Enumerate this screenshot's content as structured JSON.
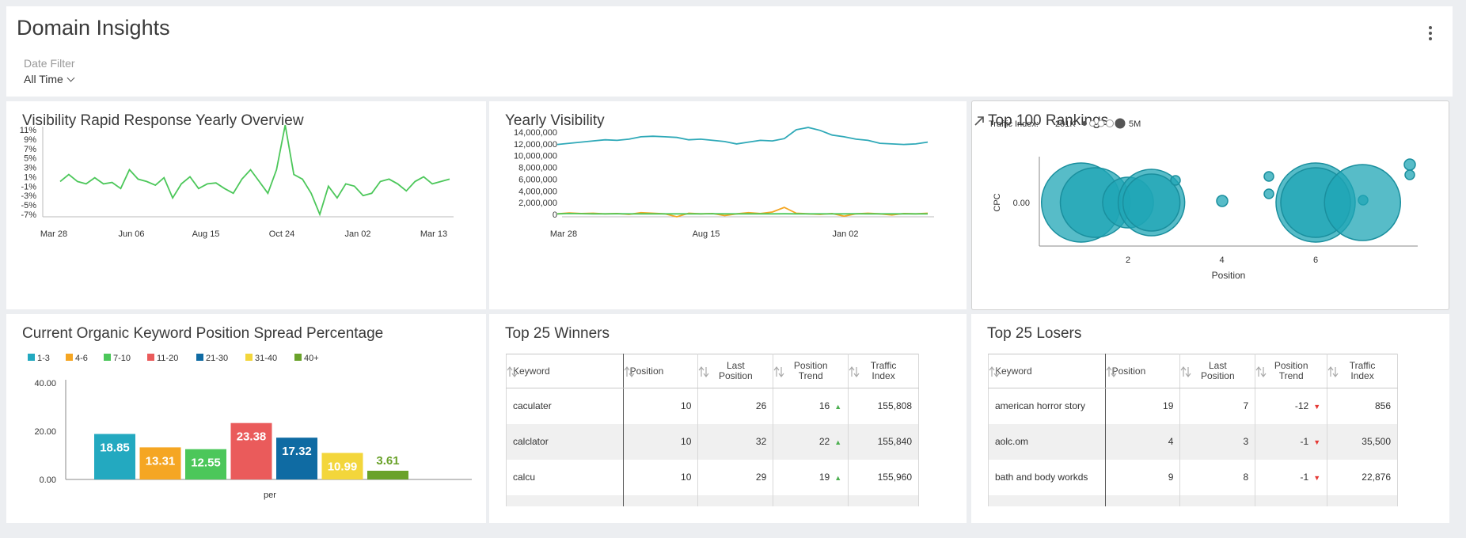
{
  "header": {
    "title": "Domain Insights",
    "date_filter_label": "Date Filter",
    "date_filter_value": "All Time"
  },
  "panels": {
    "rapid": {
      "title": "Visibility Rapid Response Yearly Overview"
    },
    "yearly": {
      "title": "Yearly Visibility"
    },
    "rankings": {
      "title": "Top 100 Rankings",
      "traffic_label": "Traffic Index:",
      "traffic_min": "201K",
      "traffic_max": "5M"
    },
    "spread": {
      "title": "Current Organic Keyword Position Spread Percentage"
    },
    "winners": {
      "title": "Top 25 Winners"
    },
    "losers": {
      "title": "Top 25 Losers"
    }
  },
  "chart_data": [
    {
      "type": "line",
      "id": "rapid",
      "title": "Visibility Rapid Response Yearly Overview",
      "y_ticks": [
        "11%",
        "9%",
        "7%",
        "5%",
        "3%",
        "1%",
        "-1%",
        "-3%",
        "-5%",
        "-7%"
      ],
      "x_ticks": [
        "Mar 28",
        "Jun 06",
        "Aug 15",
        "Oct 24",
        "Jan 02",
        "Mar 13"
      ],
      "ylim": [
        -7,
        11
      ],
      "color": "#4cc75a",
      "values": [
        0,
        1.5,
        0,
        -0.5,
        0.8,
        -0.5,
        -0.2,
        -1.5,
        2.5,
        0.5,
        0,
        -0.8,
        0.8,
        -3.5,
        -0.5,
        1,
        -1.5,
        -0.5,
        -0.3,
        -1.5,
        -2.5,
        0.5,
        2.5,
        0,
        -2.5,
        2.5,
        12,
        1.5,
        0.5,
        -2.5,
        -7,
        -1,
        -3.5,
        -0.5,
        -1,
        -3,
        -2.5,
        0,
        0.5,
        -0.5,
        -2,
        0,
        1,
        -0.5,
        0,
        0.5
      ]
    },
    {
      "type": "line",
      "id": "yearly",
      "title": "Yearly Visibility",
      "y_ticks": [
        "14,000,000",
        "12,000,000",
        "10,000,000",
        "8,000,000",
        "6,000,000",
        "4,000,000",
        "2,000,000",
        "0"
      ],
      "x_ticks": [
        "Mar 28",
        "Aug 15",
        "Jan 02"
      ],
      "ylim": [
        0,
        14000000
      ],
      "series": [
        {
          "color": "#2fa9b8",
          "values": [
            11900000,
            12100000,
            12300000,
            12500000,
            12700000,
            12600000,
            12800000,
            13200000,
            13300000,
            13200000,
            13100000,
            12700000,
            12800000,
            12600000,
            12400000,
            12000000,
            12300000,
            12600000,
            12500000,
            12900000,
            14400000,
            14800000,
            14300000,
            13500000,
            13200000,
            12800000,
            12600000,
            12100000,
            12000000,
            11900000,
            12000000,
            12300000
          ]
        },
        {
          "color": "#f5a623",
          "values": [
            100000,
            250000,
            150000,
            200000,
            100000,
            150000,
            0,
            300000,
            200000,
            100000,
            -400000,
            200000,
            100000,
            150000,
            -200000,
            100000,
            300000,
            150000,
            400000,
            1200000,
            200000,
            100000,
            0,
            150000,
            -300000,
            100000,
            200000,
            100000,
            -100000,
            150000,
            100000,
            200000
          ]
        },
        {
          "color": "#4cc75a",
          "values": [
            100000,
            150000,
            120000,
            100000,
            90000,
            110000,
            100000,
            90000,
            100000,
            95000,
            100000,
            100000,
            90000,
            110000,
            100000,
            100000,
            95000,
            100000,
            90000,
            110000,
            100000,
            100000,
            95000,
            100000,
            90000,
            110000,
            100000,
            100000,
            95000,
            100000,
            90000,
            100000
          ]
        }
      ]
    },
    {
      "type": "scatter",
      "id": "rankings",
      "title": "Top 100 Rankings",
      "xlabel": "Position",
      "ylabel": "CPC",
      "x_ticks": [
        "2",
        "4",
        "6"
      ],
      "y_ticks": [
        "0.00"
      ],
      "color": "#1fa5b5",
      "points": [
        {
          "x": 1,
          "r": 50
        },
        {
          "x": 1.3,
          "r": 44
        },
        {
          "x": 2,
          "r": 32
        },
        {
          "x": 2.5,
          "r": 42
        },
        {
          "x": 2.5,
          "r": 36
        },
        {
          "x": 2,
          "r": 7
        },
        {
          "x": 2,
          "r": 6
        },
        {
          "x": 2.5,
          "r": 6
        },
        {
          "x": 4,
          "r": 6
        },
        {
          "x": 5.5,
          "r": 7
        },
        {
          "x": 5.5,
          "r": 6
        },
        {
          "x": 6,
          "r": 50
        },
        {
          "x": 6,
          "r": 44
        },
        {
          "x": 7,
          "r": 48
        },
        {
          "x": 7.5,
          "r": 6
        }
      ]
    },
    {
      "type": "bar",
      "id": "spread",
      "title": "Current Organic Keyword Position Spread Percentage",
      "xlabel": "per",
      "y_ticks": [
        "40.00",
        "20.00",
        "0.00"
      ],
      "ylim": [
        0,
        40
      ],
      "categories": [
        "1-3",
        "4-6",
        "7-10",
        "11-20",
        "21-30",
        "31-40",
        "40+"
      ],
      "values": [
        18.85,
        13.31,
        12.55,
        23.38,
        17.32,
        10.99,
        3.61
      ],
      "labels": [
        "18.85",
        "13.31",
        "12.55",
        "23.38",
        "17.32",
        "10.99",
        "3.61"
      ],
      "colors": [
        "#23a9c0",
        "#f5a623",
        "#4cc75a",
        "#ea5b5b",
        "#0f6ba3",
        "#f3d63b",
        "#6aa22a"
      ]
    }
  ],
  "winners": {
    "headers": [
      "Keyword",
      "Position",
      "Last Position",
      "Position Trend",
      "Traffic Index"
    ],
    "rows": [
      {
        "keyword": "caculater",
        "position": "10",
        "last": "26",
        "trend": "16",
        "traffic": "155,808"
      },
      {
        "keyword": "calclator",
        "position": "10",
        "last": "32",
        "trend": "22",
        "traffic": "155,840"
      },
      {
        "keyword": "calcu",
        "position": "10",
        "last": "29",
        "trend": "19",
        "traffic": "155,960"
      }
    ]
  },
  "losers": {
    "headers": [
      "Keyword",
      "Position",
      "Last Position",
      "Position Trend",
      "Traffic Index"
    ],
    "rows": [
      {
        "keyword": "american horror story",
        "position": "19",
        "last": "7",
        "trend": "-12",
        "traffic": "856"
      },
      {
        "keyword": "aolc.om",
        "position": "4",
        "last": "3",
        "trend": "-1",
        "traffic": "35,500"
      },
      {
        "keyword": "bath and body workds",
        "position": "9",
        "last": "8",
        "trend": "-1",
        "traffic": "22,876"
      }
    ]
  }
}
